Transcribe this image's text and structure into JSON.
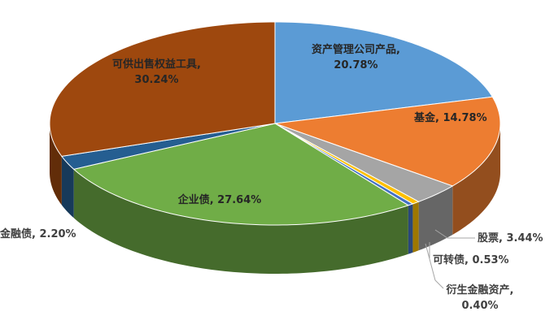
{
  "chart_data": {
    "type": "pie3d",
    "values": [
      20.78,
      14.78,
      3.44,
      0.53,
      0.4,
      27.64,
      2.2,
      30.24
    ],
    "value_labels": [
      "资产管理公司产品, 20.78%",
      "基金, 14.78%",
      "股票, 3.44%",
      "可转债, 0.53%",
      "衍生金融资产, 0.40%",
      "企业债, 27.64%",
      "金融债, 2.20%",
      "可供出售权益工具, 30.24%"
    ],
    "colors": [
      "#5b9bd5",
      "#ed7d31",
      "#a5a5a5",
      "#ffc000",
      "#4472c4",
      "#70ad47",
      "#255e91",
      "#9e480e"
    ]
  }
}
